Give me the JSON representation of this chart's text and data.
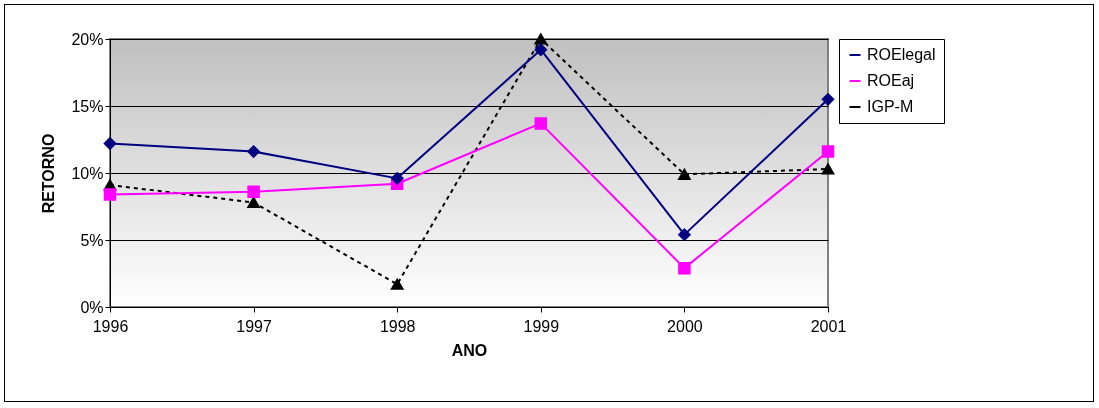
{
  "chart_data": {
    "type": "line",
    "xlabel": "ANO",
    "ylabel": "RETORNO",
    "categories": [
      "1996",
      "1997",
      "1998",
      "1999",
      "2000",
      "2001"
    ],
    "series": [
      {
        "name": "ROElegal",
        "color": "#000080",
        "marker": "diamond",
        "line_style": "solid",
        "values": [
          12.2,
          11.6,
          9.6,
          19.2,
          5.4,
          15.5
        ]
      },
      {
        "name": "ROEaj",
        "color": "#ff00ff",
        "marker": "square",
        "line_style": "solid",
        "values": [
          8.4,
          8.6,
          9.2,
          13.7,
          2.9,
          11.6
        ]
      },
      {
        "name": "IGP-M",
        "color": "#000000",
        "marker": "triangle",
        "line_style": "dashed",
        "values": [
          9.1,
          7.8,
          1.7,
          20.0,
          9.9,
          10.3
        ]
      }
    ],
    "ylim": [
      0,
      20
    ],
    "yticks": [
      {
        "value": 0,
        "label": "0%"
      },
      {
        "value": 5,
        "label": "5%"
      },
      {
        "value": 10,
        "label": "10%"
      },
      {
        "value": 15,
        "label": "15%"
      },
      {
        "value": 20,
        "label": "20%"
      }
    ],
    "grid": "y",
    "legend": "right"
  }
}
